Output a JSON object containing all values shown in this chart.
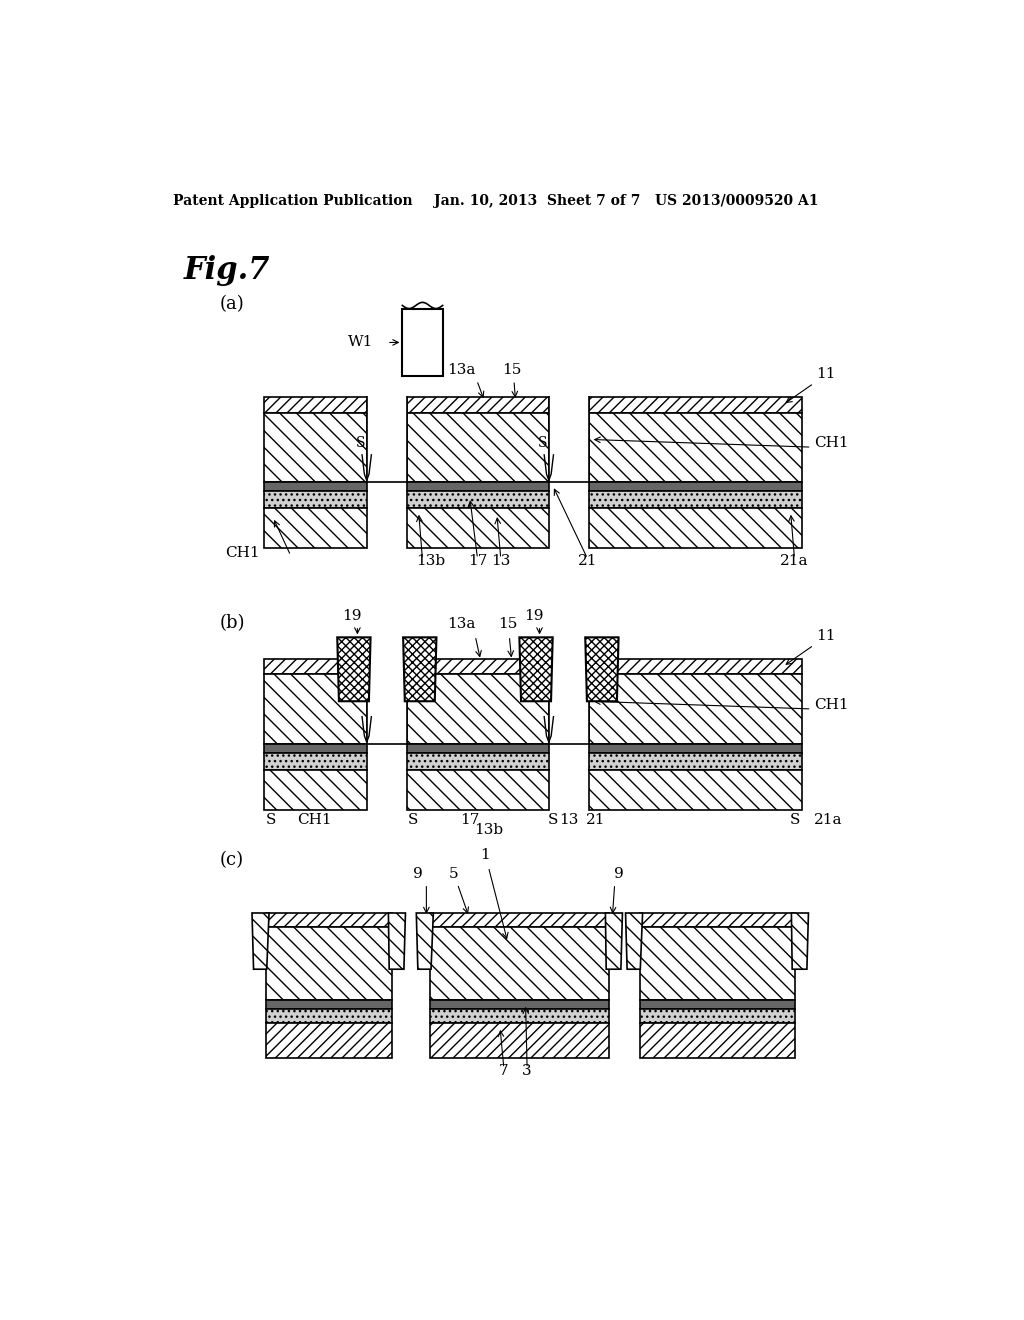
{
  "title": "Fig.7",
  "header_left": "Patent Application Publication",
  "header_center": "Jan. 10, 2013  Sheet 7 of 7",
  "header_right": "US 2013/0009520 A1",
  "bg_color": "#ffffff",
  "line_color": "#000000",
  "label_a": "(a)",
  "label_b": "(b)",
  "label_c": "(c)"
}
